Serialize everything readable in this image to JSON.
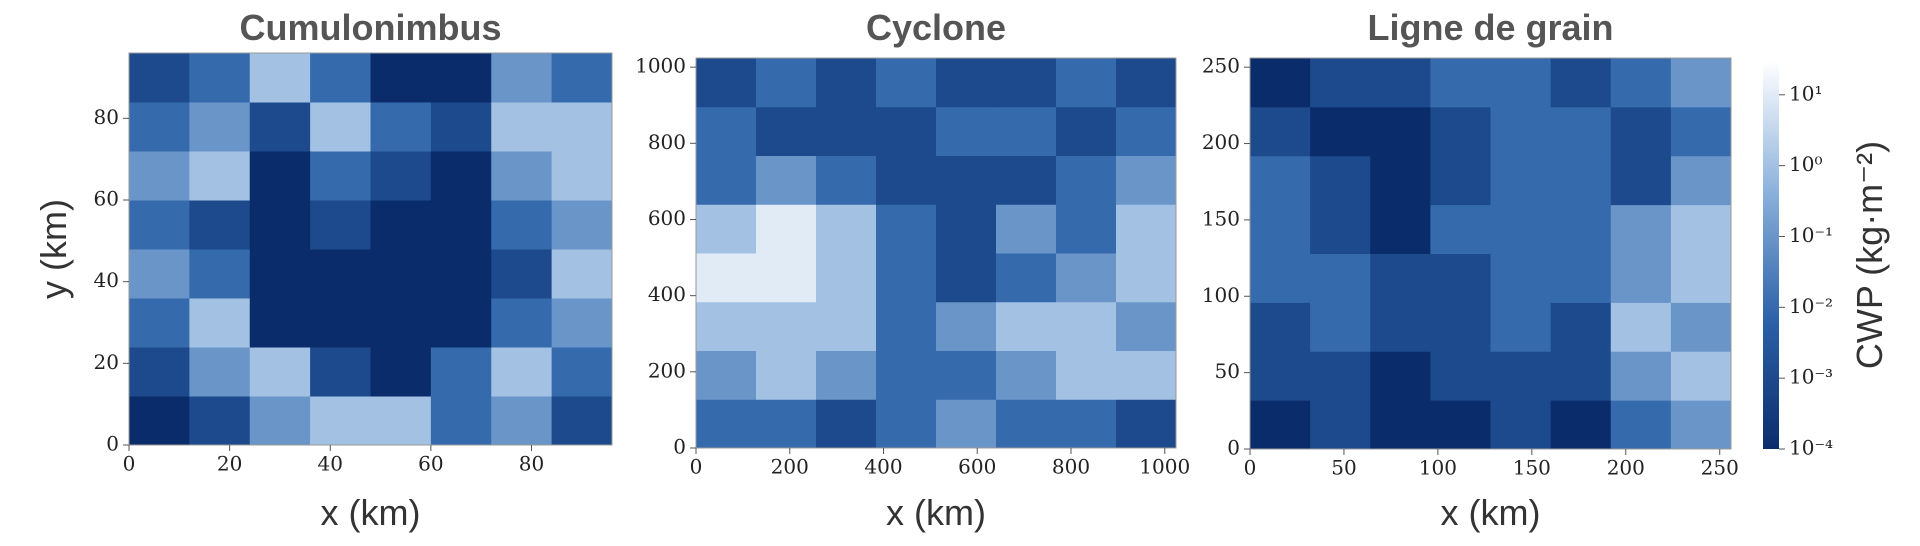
{
  "chart_data": [
    {
      "type": "heatmap",
      "title": "Cumulonimbus",
      "xlabel": "x (km)",
      "ylabel": "y (km)",
      "xlim": [
        0,
        96
      ],
      "ylim": [
        0,
        96
      ],
      "xticks": [
        0,
        20,
        40,
        60,
        80
      ],
      "yticks": [
        0,
        20,
        40,
        60,
        80
      ],
      "z": [
        [
          0.0001,
          0.001,
          0.1,
          1,
          1,
          0.01,
          0.1,
          0.001
        ],
        [
          0.001,
          0.1,
          1,
          0.001,
          0.0001,
          0.01,
          1,
          0.01
        ],
        [
          0.01,
          1,
          0.0001,
          0.0001,
          0.0001,
          0.0001,
          0.01,
          0.1
        ],
        [
          0.1,
          0.01,
          0.0001,
          0.0001,
          0.0001,
          0.0001,
          0.001,
          1
        ],
        [
          0.01,
          0.001,
          0.0001,
          0.001,
          0.0001,
          0.0001,
          0.01,
          0.1
        ],
        [
          0.1,
          1,
          0.0001,
          0.01,
          0.001,
          0.0001,
          0.1,
          1
        ],
        [
          0.01,
          0.1,
          0.001,
          1,
          0.01,
          0.001,
          1,
          1
        ],
        [
          0.001,
          0.01,
          1,
          0.01,
          0.0001,
          0.0001,
          0.1,
          0.01
        ]
      ]
    },
    {
      "type": "heatmap",
      "title": "Cyclone",
      "xlabel": "x (km)",
      "xlim": [
        0,
        1024
      ],
      "ylim": [
        0,
        1024
      ],
      "xticks": [
        0,
        200,
        400,
        600,
        800,
        1000
      ],
      "yticks": [
        0,
        200,
        400,
        600,
        800,
        1000
      ],
      "z": [
        [
          0.01,
          0.01,
          0.001,
          0.01,
          0.1,
          0.01,
          0.01,
          0.001
        ],
        [
          0.1,
          1,
          0.1,
          0.01,
          0.01,
          0.1,
          1,
          1
        ],
        [
          1,
          1,
          1,
          0.01,
          0.1,
          1,
          1,
          0.1
        ],
        [
          10,
          10,
          1,
          0.01,
          0.001,
          0.01,
          0.1,
          1
        ],
        [
          1,
          10,
          1,
          0.01,
          0.001,
          0.1,
          0.01,
          1
        ],
        [
          0.01,
          0.1,
          0.01,
          0.001,
          0.001,
          0.001,
          0.01,
          0.1
        ],
        [
          0.01,
          0.001,
          0.001,
          0.001,
          0.01,
          0.01,
          0.001,
          0.01
        ],
        [
          0.001,
          0.01,
          0.001,
          0.01,
          0.001,
          0.001,
          0.01,
          0.001
        ]
      ]
    },
    {
      "type": "heatmap",
      "title": "Ligne de grain",
      "xlabel": "x (km)",
      "xlim": [
        0,
        256
      ],
      "ylim": [
        0,
        256
      ],
      "xticks": [
        0,
        50,
        100,
        150,
        200,
        250
      ],
      "yticks": [
        0,
        50,
        100,
        150,
        200,
        250
      ],
      "z": [
        [
          0.0001,
          0.001,
          0.0001,
          0.0001,
          0.001,
          0.0001,
          0.01,
          0.1
        ],
        [
          0.001,
          0.001,
          0.0001,
          0.001,
          0.001,
          0.001,
          0.1,
          1
        ],
        [
          0.001,
          0.01,
          0.001,
          0.001,
          0.01,
          0.001,
          1,
          0.1
        ],
        [
          0.01,
          0.01,
          0.001,
          0.001,
          0.01,
          0.01,
          0.1,
          1
        ],
        [
          0.01,
          0.001,
          0.0001,
          0.01,
          0.01,
          0.01,
          0.1,
          1
        ],
        [
          0.01,
          0.001,
          0.0001,
          0.001,
          0.01,
          0.01,
          0.001,
          0.1
        ],
        [
          0.001,
          0.0001,
          0.0001,
          0.001,
          0.01,
          0.01,
          0.001,
          0.01
        ],
        [
          0.0001,
          0.001,
          0.001,
          0.01,
          0.01,
          0.001,
          0.01,
          0.1
        ]
      ]
    }
  ],
  "colorbar": {
    "label": "CWP (kg·m⁻²)",
    "log": true,
    "lim": [
      0.0001,
      30
    ],
    "cmap": [
      "#0b2c6b",
      "#2c62a8",
      "#8db2dc",
      "#ffffff"
    ],
    "ticks": [
      {
        "value": 0.0001,
        "label": "10⁻⁴"
      },
      {
        "value": 0.001,
        "label": "10⁻³"
      },
      {
        "value": 0.01,
        "label": "10⁻²"
      },
      {
        "value": 0.1,
        "label": "10⁻¹"
      },
      {
        "value": 1,
        "label": "10⁰"
      },
      {
        "value": 10,
        "label": "10¹"
      }
    ]
  }
}
